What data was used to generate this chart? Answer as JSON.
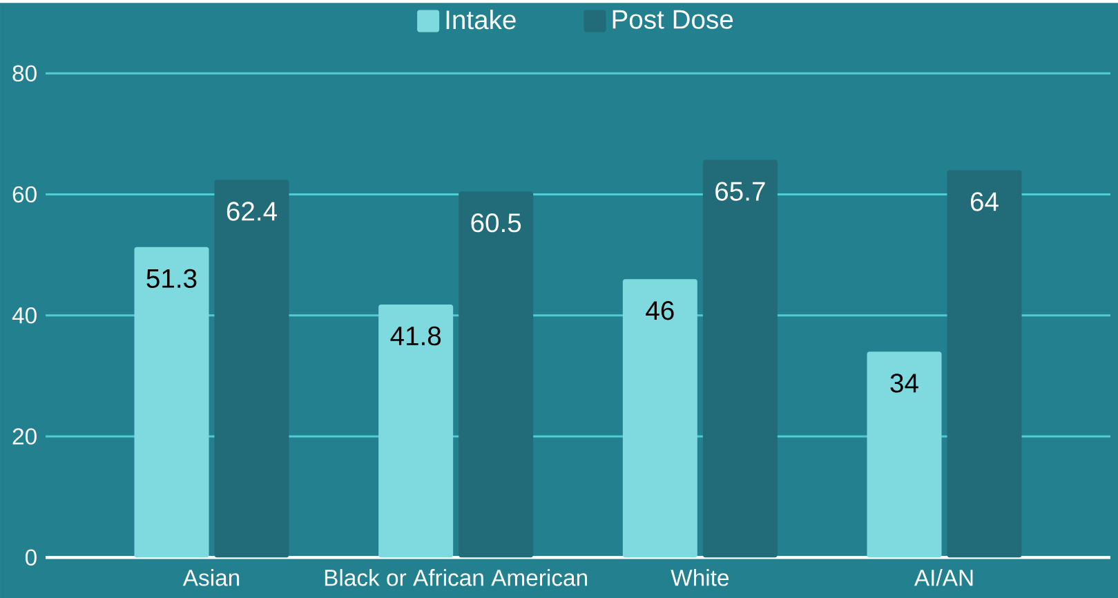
{
  "chart_data": {
    "type": "bar",
    "categories": [
      "Asian",
      "Black or African American",
      "White",
      "AI/AN"
    ],
    "series": [
      {
        "name": "Intake",
        "color": "#7fdae0",
        "values": [
          51.3,
          41.8,
          46,
          34
        ]
      },
      {
        "name": "Post Dose",
        "color": "#226b78",
        "values": [
          62.4,
          60.5,
          65.7,
          64
        ]
      }
    ],
    "ylim": [
      0,
      80
    ],
    "yticks": [
      0,
      20,
      40,
      60,
      80
    ],
    "grid": "y",
    "legend": "top",
    "data_labels": true
  }
}
